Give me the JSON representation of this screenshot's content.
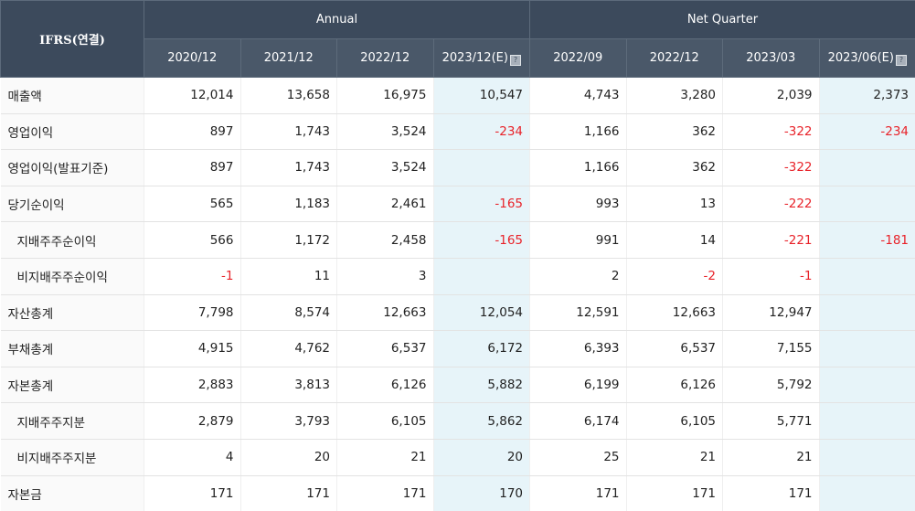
{
  "header": {
    "corner": "IFRS(연결)",
    "groups": [
      {
        "label": "Annual"
      },
      {
        "label": "Net Quarter"
      }
    ],
    "periods": [
      "2020/12",
      "2021/12",
      "2022/12",
      "2023/12(E)",
      "2022/09",
      "2022/12",
      "2023/03",
      "2023/06(E)"
    ]
  },
  "rows": [
    {
      "label": "매출액",
      "sub": false,
      "values": [
        "12,014",
        "13,658",
        "16,975",
        "10,547",
        "4,743",
        "3,280",
        "2,039",
        "2,373"
      ]
    },
    {
      "label": "영업이익",
      "sub": false,
      "values": [
        "897",
        "1,743",
        "3,524",
        "-234",
        "1,166",
        "362",
        "-322",
        "-234"
      ]
    },
    {
      "label": "영업이익(발표기준)",
      "sub": false,
      "values": [
        "897",
        "1,743",
        "3,524",
        "",
        "1,166",
        "362",
        "-322",
        ""
      ]
    },
    {
      "label": "당기순이익",
      "sub": false,
      "values": [
        "565",
        "1,183",
        "2,461",
        "-165",
        "993",
        "13",
        "-222",
        ""
      ]
    },
    {
      "label": "지배주주순이익",
      "sub": true,
      "values": [
        "566",
        "1,172",
        "2,458",
        "-165",
        "991",
        "14",
        "-221",
        "-181"
      ]
    },
    {
      "label": "비지배주주순이익",
      "sub": true,
      "values": [
        "-1",
        "11",
        "3",
        "",
        "2",
        "-2",
        "-1",
        ""
      ]
    },
    {
      "label": "자산총계",
      "sub": false,
      "values": [
        "7,798",
        "8,574",
        "12,663",
        "12,054",
        "12,591",
        "12,663",
        "12,947",
        ""
      ]
    },
    {
      "label": "부채총계",
      "sub": false,
      "values": [
        "4,915",
        "4,762",
        "6,537",
        "6,172",
        "6,393",
        "6,537",
        "7,155",
        ""
      ]
    },
    {
      "label": "자본총계",
      "sub": false,
      "values": [
        "2,883",
        "3,813",
        "6,126",
        "5,882",
        "6,199",
        "6,126",
        "5,792",
        ""
      ]
    },
    {
      "label": "지배주주지분",
      "sub": true,
      "values": [
        "2,879",
        "3,793",
        "6,105",
        "5,862",
        "6,174",
        "6,105",
        "5,771",
        ""
      ]
    },
    {
      "label": "비지배주주지분",
      "sub": true,
      "values": [
        "4",
        "20",
        "21",
        "20",
        "25",
        "21",
        "21",
        ""
      ]
    },
    {
      "label": "자본금",
      "sub": false,
      "values": [
        "171",
        "171",
        "171",
        "170",
        "171",
        "171",
        "171",
        ""
      ]
    }
  ],
  "estimate_columns": [
    3,
    7
  ],
  "colors": {
    "header_bg": "#3c4a5c",
    "estimate_bg": "#e7f4f9",
    "negative": "#e8232a"
  }
}
